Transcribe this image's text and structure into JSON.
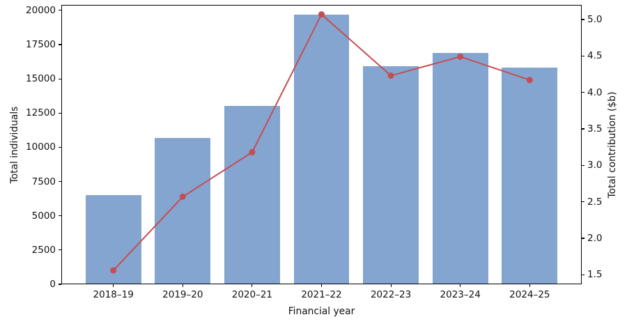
{
  "chart_data": {
    "type": "bar",
    "combo": "bar+line dual axis",
    "title": "",
    "categories": [
      "2018–19",
      "2019–20",
      "2020–21",
      "2021–22",
      "2022–23",
      "2023–24",
      "2024–25"
    ],
    "series": [
      {
        "name": "Total individuals",
        "type": "bar",
        "axis": "left",
        "color": "#84a5d0",
        "values": [
          6500,
          10700,
          13000,
          19700,
          15900,
          16900,
          15800
        ]
      },
      {
        "name": "Total contribution ($b)",
        "type": "line",
        "axis": "right",
        "color": "#c44e52",
        "values": [
          1.56,
          2.57,
          3.18,
          5.07,
          4.23,
          4.49,
          4.17
        ]
      }
    ],
    "xlabel": "Financial year",
    "ylabel_left": "Total individuals",
    "ylabel_right": "Total contribution ($b)",
    "left_axis": {
      "ticks": [
        0,
        2500,
        5000,
        7500,
        10000,
        12500,
        15000,
        17500,
        20000
      ],
      "range": [
        0,
        20400
      ]
    },
    "right_axis": {
      "ticks": [
        1.5,
        2.0,
        2.5,
        3.0,
        3.5,
        4.0,
        4.5,
        5.0
      ],
      "range": [
        1.37,
        5.2
      ]
    },
    "grid": false,
    "legend": "none",
    "colors": {
      "bar": "#84a5d0",
      "line": "#c44e52",
      "spine": "#000000",
      "text": "#111111",
      "background": "#ffffff"
    }
  }
}
